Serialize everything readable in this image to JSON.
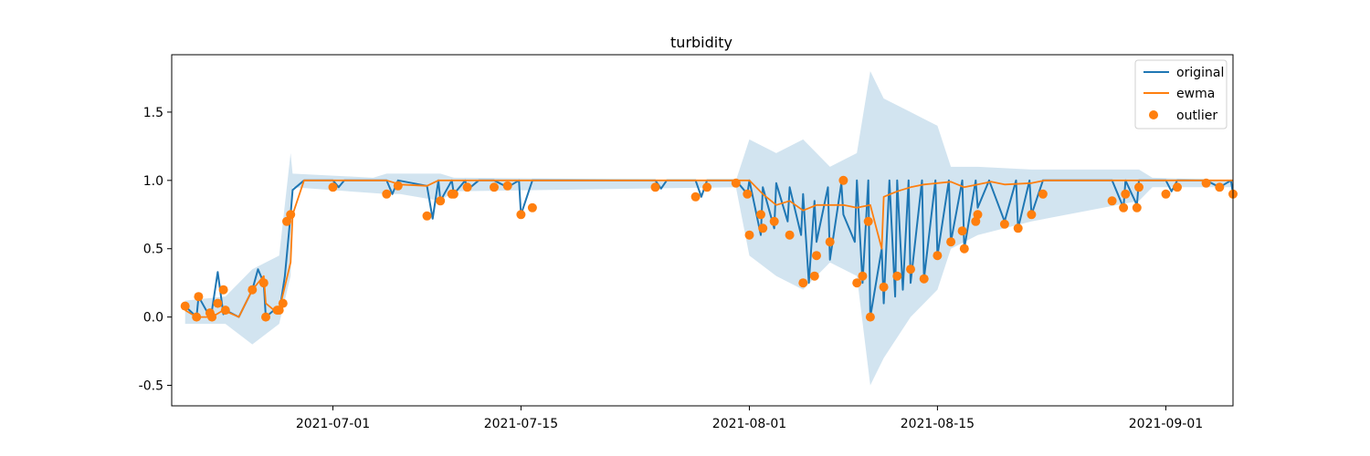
{
  "chart_data": {
    "type": "line",
    "title": "turbidity",
    "xlabel": "",
    "ylabel": "",
    "x_axis": {
      "type": "date",
      "range": [
        "2021-06-19",
        "2021-09-06"
      ],
      "tick_labels": [
        "2021-07-01",
        "2021-07-15",
        "2021-08-01",
        "2021-08-15",
        "2021-09-01"
      ]
    },
    "y_axis": {
      "range": [
        -0.65,
        1.92
      ],
      "ticks": [
        -0.5,
        0.0,
        0.5,
        1.0,
        1.5
      ],
      "tick_labels": [
        "-0.5",
        "0.0",
        "0.5",
        "1.0",
        "1.5"
      ]
    },
    "grid": false,
    "legend": {
      "position": "top-right",
      "entries": [
        "original",
        "ewma",
        "outlier"
      ]
    },
    "colors": {
      "original": "#1f77b4",
      "ewma": "#ff7f0e",
      "outlier": "#ff7f0e",
      "band": "#1f77b4"
    },
    "series": [
      {
        "name": "original",
        "kind": "line",
        "points": [
          [
            "2021-06-20",
            0.08
          ],
          [
            "2021-06-20",
            0.0
          ],
          [
            "2021-06-21",
            0.15
          ],
          [
            "2021-06-21",
            0.0
          ],
          [
            "2021-06-22",
            0.05
          ],
          [
            "2021-06-22",
            0.33
          ],
          [
            "2021-06-22",
            0.02
          ],
          [
            "2021-06-23",
            0.05
          ],
          [
            "2021-06-24",
            0.0
          ],
          [
            "2021-06-25",
            0.2
          ],
          [
            "2021-06-25",
            0.35
          ],
          [
            "2021-06-25",
            0.25
          ],
          [
            "2021-06-26",
            0.0
          ],
          [
            "2021-06-26",
            0.07
          ],
          [
            "2021-06-27",
            0.03
          ],
          [
            "2021-06-27",
            0.3
          ],
          [
            "2021-06-27",
            0.75
          ],
          [
            "2021-06-28",
            0.93
          ],
          [
            "2021-06-28",
            1.0
          ],
          [
            "2021-07-01",
            1.0
          ],
          [
            "2021-07-01",
            0.95
          ],
          [
            "2021-07-01",
            1.0
          ],
          [
            "2021-07-05",
            1.0
          ],
          [
            "2021-07-05",
            0.9
          ],
          [
            "2021-07-05",
            1.0
          ],
          [
            "2021-07-08",
            0.96
          ],
          [
            "2021-07-08",
            0.72
          ],
          [
            "2021-07-08",
            1.0
          ],
          [
            "2021-07-09",
            0.85
          ],
          [
            "2021-07-09",
            1.0
          ],
          [
            "2021-07-10",
            0.9
          ],
          [
            "2021-07-10",
            1.0
          ],
          [
            "2021-07-11",
            0.93
          ],
          [
            "2021-07-11",
            1.0
          ],
          [
            "2021-07-13",
            1.0
          ],
          [
            "2021-07-14",
            0.95
          ],
          [
            "2021-07-14",
            1.0
          ],
          [
            "2021-07-15",
            0.75
          ],
          [
            "2021-07-15",
            1.0
          ],
          [
            "2021-07-25",
            1.0
          ],
          [
            "2021-07-25",
            0.94
          ],
          [
            "2021-07-25",
            1.0
          ],
          [
            "2021-07-28",
            1.0
          ],
          [
            "2021-07-28",
            0.88
          ],
          [
            "2021-07-28",
            1.0
          ],
          [
            "2021-07-31",
            1.0
          ],
          [
            "2021-07-31",
            0.9
          ],
          [
            "2021-08-01",
            1.0
          ],
          [
            "2021-08-01",
            0.6
          ],
          [
            "2021-08-02",
            0.95
          ],
          [
            "2021-08-02",
            0.65
          ],
          [
            "2021-08-03",
            0.98
          ],
          [
            "2021-08-03",
            0.7
          ],
          [
            "2021-08-04",
            0.95
          ],
          [
            "2021-08-04",
            0.6
          ],
          [
            "2021-08-05",
            0.9
          ],
          [
            "2021-08-05",
            0.25
          ],
          [
            "2021-08-05",
            0.85
          ],
          [
            "2021-08-06",
            0.55
          ],
          [
            "2021-08-06",
            0.95
          ],
          [
            "2021-08-07",
            0.42
          ],
          [
            "2021-08-07",
            0.98
          ],
          [
            "2021-08-08",
            0.75
          ],
          [
            "2021-08-08",
            0.55
          ],
          [
            "2021-08-09",
            1.0
          ],
          [
            "2021-08-09",
            0.25
          ],
          [
            "2021-08-09",
            1.0
          ],
          [
            "2021-08-10",
            0.0
          ],
          [
            "2021-08-10",
            0.5
          ],
          [
            "2021-08-11",
            0.1
          ],
          [
            "2021-08-11",
            1.0
          ],
          [
            "2021-08-11",
            0.15
          ],
          [
            "2021-08-12",
            1.0
          ],
          [
            "2021-08-12",
            0.2
          ],
          [
            "2021-08-12",
            1.0
          ],
          [
            "2021-08-13",
            0.25
          ],
          [
            "2021-08-13",
            1.0
          ],
          [
            "2021-08-14",
            0.28
          ],
          [
            "2021-08-14",
            1.0
          ],
          [
            "2021-08-15",
            0.45
          ],
          [
            "2021-08-15",
            1.0
          ],
          [
            "2021-08-16",
            0.55
          ],
          [
            "2021-08-16",
            1.0
          ],
          [
            "2021-08-17",
            0.5
          ],
          [
            "2021-08-17",
            1.0
          ],
          [
            "2021-08-18",
            0.8
          ],
          [
            "2021-08-18",
            1.0
          ],
          [
            "2021-08-20",
            0.7
          ],
          [
            "2021-08-20",
            1.0
          ],
          [
            "2021-08-21",
            0.65
          ],
          [
            "2021-08-21",
            1.0
          ],
          [
            "2021-08-22",
            0.75
          ],
          [
            "2021-08-22",
            1.0
          ],
          [
            "2021-08-28",
            1.0
          ],
          [
            "2021-08-28",
            0.8
          ],
          [
            "2021-08-29",
            1.0
          ],
          [
            "2021-08-29",
            0.82
          ],
          [
            "2021-08-30",
            1.0
          ],
          [
            "2021-09-01",
            1.0
          ],
          [
            "2021-09-01",
            0.92
          ],
          [
            "2021-09-01",
            1.0
          ],
          [
            "2021-09-04",
            1.0
          ],
          [
            "2021-09-05",
            0.95
          ],
          [
            "2021-09-05",
            1.0
          ],
          [
            "2021-09-06",
            0.9
          ]
        ]
      },
      {
        "name": "ewma",
        "kind": "line",
        "points": [
          [
            "2021-06-20",
            0.05
          ],
          [
            "2021-06-20",
            0.0
          ],
          [
            "2021-06-22",
            0.0
          ],
          [
            "2021-06-22",
            0.05
          ],
          [
            "2021-06-24",
            0.0
          ],
          [
            "2021-06-25",
            0.2
          ],
          [
            "2021-06-25",
            0.3
          ],
          [
            "2021-06-26",
            0.1
          ],
          [
            "2021-06-26",
            0.03
          ],
          [
            "2021-06-27",
            0.05
          ],
          [
            "2021-06-27",
            0.4
          ],
          [
            "2021-06-28",
            0.75
          ],
          [
            "2021-06-28",
            1.0
          ],
          [
            "2021-07-05",
            1.0
          ],
          [
            "2021-07-06",
            0.97
          ],
          [
            "2021-07-08",
            0.96
          ],
          [
            "2021-07-08",
            1.0
          ],
          [
            "2021-08-01",
            1.0
          ],
          [
            "2021-08-02",
            0.9
          ],
          [
            "2021-08-03",
            0.82
          ],
          [
            "2021-08-04",
            0.85
          ],
          [
            "2021-08-05",
            0.78
          ],
          [
            "2021-08-06",
            0.82
          ],
          [
            "2021-08-08",
            0.82
          ],
          [
            "2021-08-09",
            0.8
          ],
          [
            "2021-08-10",
            0.82
          ],
          [
            "2021-08-10",
            0.5
          ],
          [
            "2021-08-11",
            0.88
          ],
          [
            "2021-08-12",
            0.92
          ],
          [
            "2021-08-13",
            0.95
          ],
          [
            "2021-08-14",
            0.97
          ],
          [
            "2021-08-15",
            0.98
          ],
          [
            "2021-08-16",
            0.99
          ],
          [
            "2021-08-17",
            0.95
          ],
          [
            "2021-08-18",
            0.97
          ],
          [
            "2021-08-19",
            0.99
          ],
          [
            "2021-08-20",
            0.97
          ],
          [
            "2021-08-22",
            0.98
          ],
          [
            "2021-08-23",
            1.0
          ],
          [
            "2021-09-06",
            1.0
          ]
        ]
      },
      {
        "name": "outlier",
        "kind": "scatter",
        "points": [
          [
            "2021-06-20",
            0.08
          ],
          [
            "2021-06-20",
            0.0
          ],
          [
            "2021-06-21",
            0.15
          ],
          [
            "2021-06-21",
            0.03
          ],
          [
            "2021-06-22",
            0.0
          ],
          [
            "2021-06-22",
            0.1
          ],
          [
            "2021-06-22",
            0.2
          ],
          [
            "2021-06-23",
            0.05
          ],
          [
            "2021-06-25",
            0.2
          ],
          [
            "2021-06-25",
            0.25
          ],
          [
            "2021-06-26",
            0.0
          ],
          [
            "2021-06-26",
            0.05
          ],
          [
            "2021-06-27",
            0.05
          ],
          [
            "2021-06-27",
            0.1
          ],
          [
            "2021-06-27",
            0.7
          ],
          [
            "2021-06-27",
            0.75
          ],
          [
            "2021-07-01",
            0.95
          ],
          [
            "2021-07-05",
            0.9
          ],
          [
            "2021-07-05",
            0.96
          ],
          [
            "2021-07-08",
            0.74
          ],
          [
            "2021-07-09",
            0.85
          ],
          [
            "2021-07-09",
            0.9
          ],
          [
            "2021-07-10",
            0.9
          ],
          [
            "2021-07-11",
            0.95
          ],
          [
            "2021-07-13",
            0.95
          ],
          [
            "2021-07-14",
            0.96
          ],
          [
            "2021-07-15",
            0.75
          ],
          [
            "2021-07-15",
            0.8
          ],
          [
            "2021-07-25",
            0.95
          ],
          [
            "2021-07-28",
            0.88
          ],
          [
            "2021-07-28",
            0.95
          ],
          [
            "2021-07-31",
            0.98
          ],
          [
            "2021-07-31",
            0.9
          ],
          [
            "2021-08-01",
            0.6
          ],
          [
            "2021-08-01",
            0.75
          ],
          [
            "2021-08-02",
            0.65
          ],
          [
            "2021-08-02",
            0.7
          ],
          [
            "2021-08-04",
            0.6
          ],
          [
            "2021-08-05",
            0.25
          ],
          [
            "2021-08-05",
            0.3
          ],
          [
            "2021-08-06",
            0.45
          ],
          [
            "2021-08-07",
            0.55
          ],
          [
            "2021-08-08",
            1.0
          ],
          [
            "2021-08-09",
            0.25
          ],
          [
            "2021-08-09",
            0.3
          ],
          [
            "2021-08-09",
            0.7
          ],
          [
            "2021-08-10",
            0.0
          ],
          [
            "2021-08-11",
            0.22
          ],
          [
            "2021-08-12",
            0.3
          ],
          [
            "2021-08-13",
            0.35
          ],
          [
            "2021-08-14",
            0.28
          ],
          [
            "2021-08-15",
            0.45
          ],
          [
            "2021-08-16",
            0.55
          ],
          [
            "2021-08-16",
            0.63
          ],
          [
            "2021-08-17",
            0.5
          ],
          [
            "2021-08-17",
            0.7
          ],
          [
            "2021-08-18",
            0.75
          ],
          [
            "2021-08-20",
            0.68
          ],
          [
            "2021-08-21",
            0.65
          ],
          [
            "2021-08-22",
            0.75
          ],
          [
            "2021-08-22",
            0.9
          ],
          [
            "2021-08-28",
            0.85
          ],
          [
            "2021-08-28",
            0.8
          ],
          [
            "2021-08-29",
            0.9
          ],
          [
            "2021-08-29",
            0.8
          ],
          [
            "2021-08-30",
            0.95
          ],
          [
            "2021-09-01",
            0.9
          ],
          [
            "2021-09-01",
            0.95
          ],
          [
            "2021-09-04",
            0.98
          ],
          [
            "2021-09-05",
            0.95
          ],
          [
            "2021-09-06",
            0.9
          ]
        ]
      }
    ],
    "band": {
      "upper": [
        [
          "2021-06-20",
          0.12
        ],
        [
          "2021-06-23",
          0.15
        ],
        [
          "2021-06-25",
          0.35
        ],
        [
          "2021-06-27",
          0.45
        ],
        [
          "2021-06-27",
          1.2
        ],
        [
          "2021-06-28",
          1.05
        ],
        [
          "2021-07-04",
          1.02
        ],
        [
          "2021-07-05",
          1.05
        ],
        [
          "2021-07-09",
          1.05
        ],
        [
          "2021-07-10",
          1.02
        ],
        [
          "2021-07-31",
          1.0
        ],
        [
          "2021-08-01",
          1.3
        ],
        [
          "2021-08-03",
          1.2
        ],
        [
          "2021-08-05",
          1.3
        ],
        [
          "2021-08-07",
          1.1
        ],
        [
          "2021-08-09",
          1.2
        ],
        [
          "2021-08-10",
          1.8
        ],
        [
          "2021-08-11",
          1.6
        ],
        [
          "2021-08-13",
          1.5
        ],
        [
          "2021-08-15",
          1.4
        ],
        [
          "2021-08-16",
          1.1
        ],
        [
          "2021-08-18",
          1.1
        ],
        [
          "2021-08-22",
          1.08
        ],
        [
          "2021-08-30",
          1.08
        ],
        [
          "2021-08-31",
          1.02
        ],
        [
          "2021-09-06",
          1.0
        ]
      ],
      "lower": [
        [
          "2021-06-20",
          -0.05
        ],
        [
          "2021-06-23",
          -0.05
        ],
        [
          "2021-06-25",
          -0.2
        ],
        [
          "2021-06-27",
          -0.05
        ],
        [
          "2021-06-27",
          0.3
        ],
        [
          "2021-06-28",
          0.95
        ],
        [
          "2021-07-05",
          0.9
        ],
        [
          "2021-07-06",
          0.9
        ],
        [
          "2021-07-09",
          0.85
        ],
        [
          "2021-07-10",
          0.92
        ],
        [
          "2021-07-31",
          0.95
        ],
        [
          "2021-08-01",
          0.45
        ],
        [
          "2021-08-03",
          0.3
        ],
        [
          "2021-08-05",
          0.2
        ],
        [
          "2021-08-07",
          0.4
        ],
        [
          "2021-08-09",
          0.3
        ],
        [
          "2021-08-10",
          -0.5
        ],
        [
          "2021-08-11",
          -0.3
        ],
        [
          "2021-08-13",
          0.0
        ],
        [
          "2021-08-15",
          0.2
        ],
        [
          "2021-08-16",
          0.5
        ],
        [
          "2021-08-18",
          0.6
        ],
        [
          "2021-08-22",
          0.7
        ],
        [
          "2021-08-30",
          0.85
        ],
        [
          "2021-08-31",
          0.95
        ],
        [
          "2021-09-06",
          0.95
        ]
      ]
    }
  }
}
